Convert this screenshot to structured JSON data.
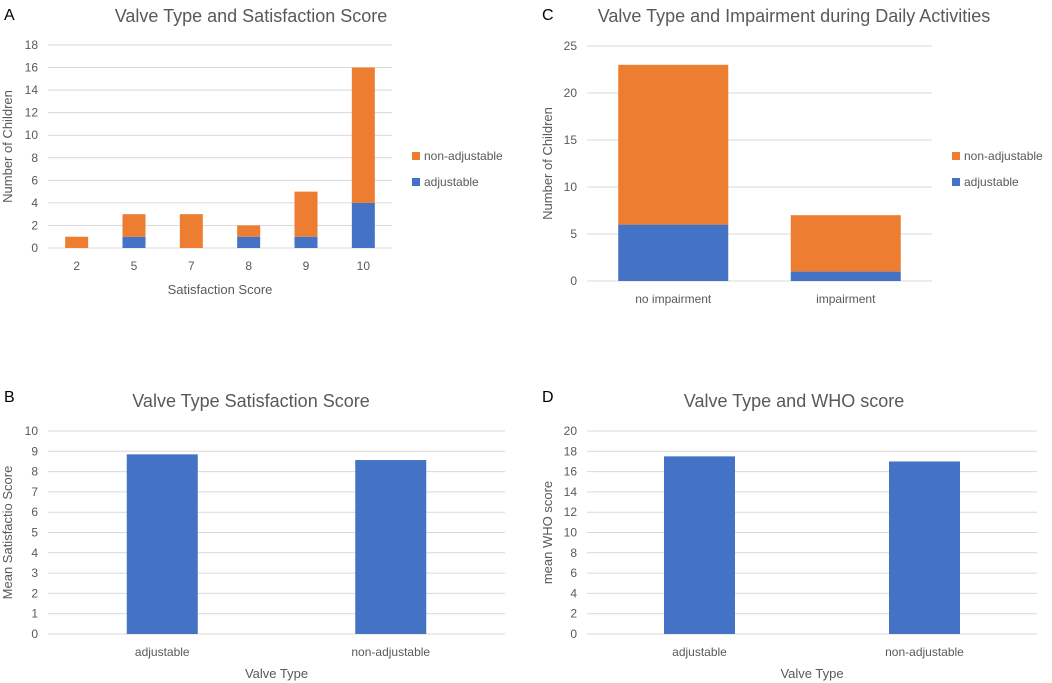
{
  "colors": {
    "adjustable": "#4472c4",
    "non_adjustable": "#ed7d31",
    "single": "#4472c4"
  },
  "chart_data": [
    {
      "panel": "A",
      "type": "bar",
      "stacked": true,
      "title": "Valve Type and Satisfaction Score",
      "xlabel": "Satisfaction Score",
      "ylabel": "Number of Children",
      "categories": [
        "2",
        "5",
        "7",
        "8",
        "9",
        "10"
      ],
      "series": [
        {
          "name": "adjustable",
          "color_key": "adjustable",
          "values": [
            0,
            1,
            0,
            1,
            1,
            4
          ]
        },
        {
          "name": "non-adjustable",
          "color_key": "non_adjustable",
          "values": [
            1,
            2,
            3,
            1,
            4,
            12
          ]
        }
      ],
      "ylim": [
        0,
        18
      ],
      "yticks": [
        0,
        2,
        4,
        6,
        8,
        10,
        12,
        14,
        16,
        18
      ],
      "legend": "right",
      "grid": true
    },
    {
      "panel": "C",
      "type": "bar",
      "stacked": true,
      "title": "Valve Type and Impairment during Daily Activities",
      "xlabel": "",
      "ylabel": "Number of Children",
      "categories": [
        "no impairment",
        "impairment"
      ],
      "series": [
        {
          "name": "adjustable",
          "color_key": "adjustable",
          "values": [
            6,
            1
          ]
        },
        {
          "name": "non-adjustable",
          "color_key": "non_adjustable",
          "values": [
            17,
            6
          ]
        }
      ],
      "ylim": [
        0,
        25
      ],
      "yticks": [
        0,
        5,
        10,
        15,
        20,
        25
      ],
      "legend": "right",
      "grid": true
    },
    {
      "panel": "B",
      "type": "bar",
      "stacked": false,
      "title": "Valve Type Satisfaction Score",
      "xlabel": "Valve Type",
      "ylabel": "Mean Satisfactio Score",
      "categories": [
        "adjustable",
        "non-adjustable"
      ],
      "series": [
        {
          "name": "Mean Satisfaction Score",
          "color_key": "single",
          "values": [
            8.85,
            8.57
          ]
        }
      ],
      "ylim": [
        0,
        10
      ],
      "yticks": [
        0,
        1,
        2,
        3,
        4,
        5,
        6,
        7,
        8,
        9,
        10
      ],
      "grid": true
    },
    {
      "panel": "D",
      "type": "bar",
      "stacked": false,
      "title": "Valve Type and WHO score",
      "xlabel": "Valve Type",
      "ylabel": "mean WHO score",
      "categories": [
        "adjustable",
        "non-adjustable"
      ],
      "series": [
        {
          "name": "mean WHO score",
          "color_key": "single",
          "values": [
            17.5,
            17.0
          ]
        }
      ],
      "ylim": [
        0,
        20
      ],
      "yticks": [
        0,
        2,
        4,
        6,
        8,
        10,
        12,
        14,
        16,
        18,
        20
      ],
      "grid": true
    }
  ]
}
